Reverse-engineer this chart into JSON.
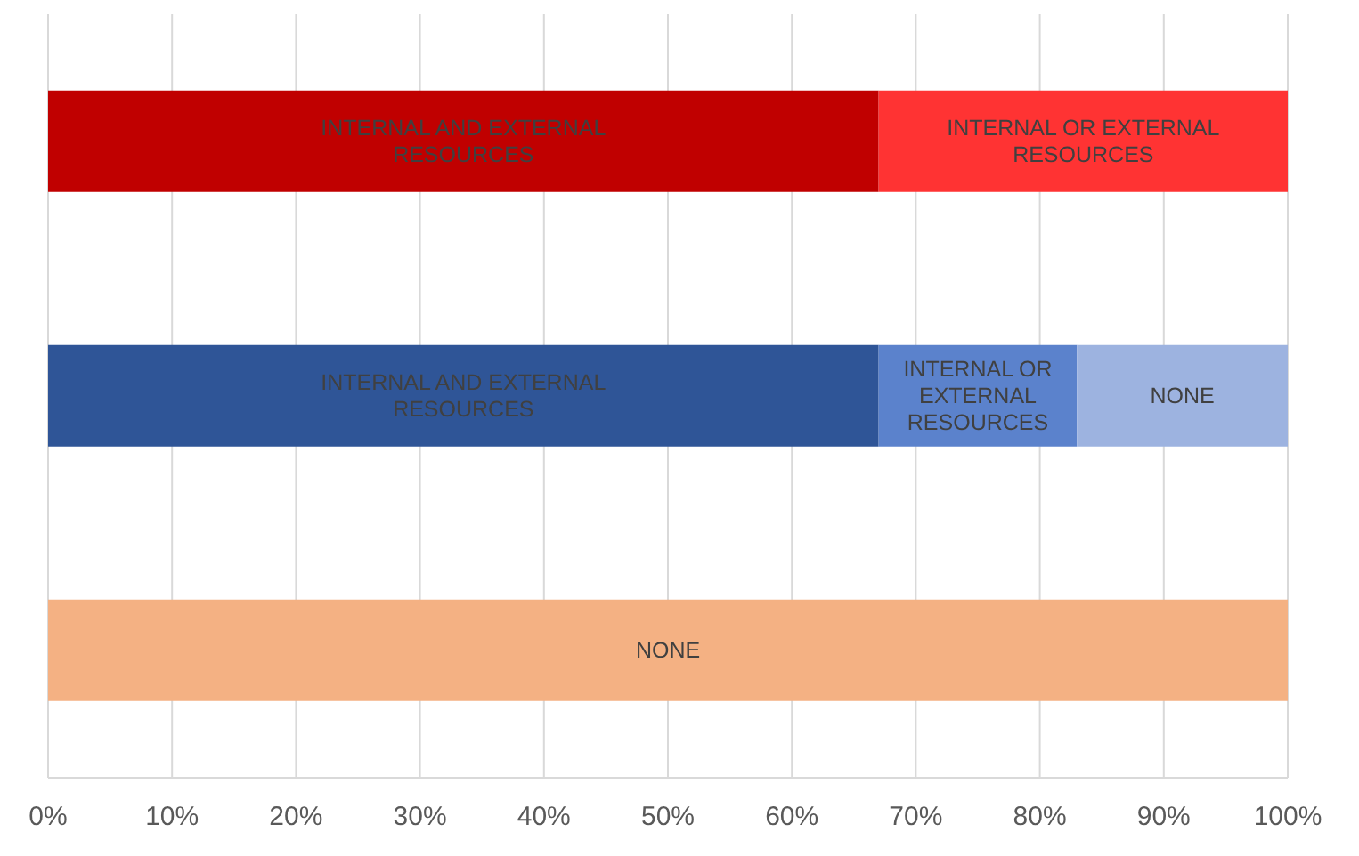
{
  "chart_data": {
    "type": "bar",
    "orientation": "horizontal",
    "stacked": true,
    "categories": [
      null,
      null,
      null
    ],
    "series": [
      {
        "colors": [
          "#c00000",
          "#2f5597",
          "#f4b183"
        ],
        "values": [
          67,
          67,
          0
        ],
        "value_labels": [
          "INTERNAL AND EXTERNAL RESOURCES",
          "INTERNAL AND EXTERNAL RESOURCES",
          null
        ]
      },
      {
        "colors": [
          "#ff3333",
          "#5b82cc",
          "#f4b183"
        ],
        "values": [
          33,
          16,
          0
        ],
        "value_labels": [
          "INTERNAL OR EXTERNAL RESOURCES",
          "INTERNAL OR EXTERNAL RESOURCES",
          null
        ]
      },
      {
        "colors": [
          "#ff3333",
          "#9db3e0",
          "#f4b183"
        ],
        "values": [
          0,
          17,
          100
        ],
        "value_labels": [
          null,
          "NONE",
          "NONE"
        ]
      }
    ],
    "xlim": [
      0,
      100
    ],
    "xticks": [
      {
        "value": 0,
        "label": "0%"
      },
      {
        "value": 10,
        "label": "10%"
      },
      {
        "value": 20,
        "label": "20%"
      },
      {
        "value": 30,
        "label": "30%"
      },
      {
        "value": 40,
        "label": "40%"
      },
      {
        "value": 50,
        "label": "50%"
      },
      {
        "value": 60,
        "label": "60%"
      },
      {
        "value": 70,
        "label": "70%"
      },
      {
        "value": 80,
        "label": "80%"
      },
      {
        "value": 90,
        "label": "90%"
      },
      {
        "value": 100,
        "label": "100%"
      }
    ],
    "grid": "x",
    "tick_labels": "x"
  }
}
